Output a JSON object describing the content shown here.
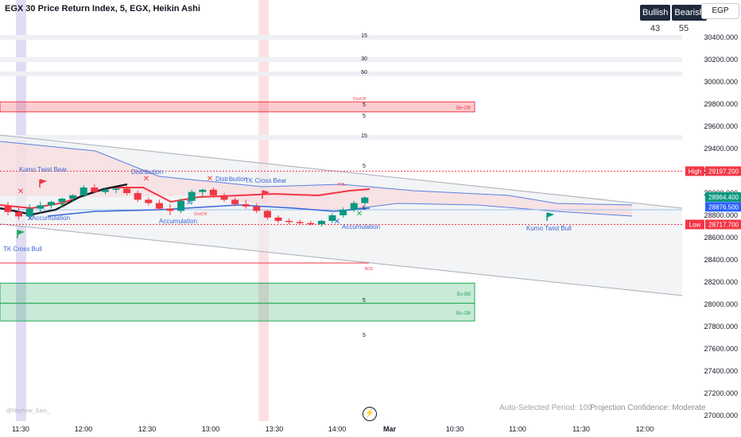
{
  "header": {
    "title": "EGX 30 Price Return Index, 5, EGX, Heikin Ashi",
    "currency": "EGP"
  },
  "sentiment": {
    "bullish_label": "Bullish",
    "bearish_label": "Bearish",
    "bullish_count": "43",
    "bearish_count": "55"
  },
  "footer": {
    "period": "Auto-Selected Period: 100",
    "confidence": "Projection Confidence: Moderate",
    "author": "@Nephew_Sam_"
  },
  "chart_data": {
    "type": "candlestick",
    "ylim": [
      27000,
      30500
    ],
    "y_ticks": [
      30400,
      30200,
      30000,
      29800,
      29600,
      29400,
      29200,
      29000,
      28800,
      28600,
      28400,
      28200,
      28000,
      27800,
      27600,
      27400,
      27200,
      27000
    ],
    "x_ticks": [
      "11:30",
      "12:00",
      "12:30",
      "13:00",
      "13:30",
      "14:00",
      "Mar",
      "10:30",
      "11:00",
      "11:30",
      "12:00"
    ],
    "price_tags": [
      {
        "label": "High",
        "value": 29197.2,
        "text": "29197.200",
        "color": "#f23645"
      },
      {
        "value": 28964.4,
        "text": "28964.400",
        "color": "#089981"
      },
      {
        "value": 28876.5,
        "text": "28876.500",
        "color": "#2962ff"
      },
      {
        "label": "Low",
        "value": 28717.7,
        "text": "28717.700",
        "color": "#f23645"
      }
    ],
    "candles": [
      {
        "o": 28880,
        "h": 28920,
        "l": 28800,
        "c": 28830
      },
      {
        "o": 28830,
        "h": 28880,
        "l": 28760,
        "c": 28790
      },
      {
        "o": 28790,
        "h": 28900,
        "l": 28760,
        "c": 28860
      },
      {
        "o": 28860,
        "h": 28920,
        "l": 28820,
        "c": 28890
      },
      {
        "o": 28890,
        "h": 28930,
        "l": 28860,
        "c": 28920
      },
      {
        "o": 28920,
        "h": 28960,
        "l": 28890,
        "c": 28950
      },
      {
        "o": 28950,
        "h": 28990,
        "l": 28920,
        "c": 28980
      },
      {
        "o": 28980,
        "h": 29070,
        "l": 28960,
        "c": 29050
      },
      {
        "o": 29050,
        "h": 29080,
        "l": 29000,
        "c": 29010
      },
      {
        "o": 29010,
        "h": 29050,
        "l": 28990,
        "c": 29030
      },
      {
        "o": 29030,
        "h": 29050,
        "l": 29000,
        "c": 29040
      },
      {
        "o": 29040,
        "h": 29060,
        "l": 28980,
        "c": 29000
      },
      {
        "o": 29000,
        "h": 29020,
        "l": 28920,
        "c": 28940
      },
      {
        "o": 28940,
        "h": 28960,
        "l": 28890,
        "c": 28910
      },
      {
        "o": 28910,
        "h": 28940,
        "l": 28850,
        "c": 28860
      },
      {
        "o": 28860,
        "h": 28900,
        "l": 28800,
        "c": 28840
      },
      {
        "o": 28840,
        "h": 28950,
        "l": 28820,
        "c": 28930
      },
      {
        "o": 28930,
        "h": 29030,
        "l": 28900,
        "c": 29010
      },
      {
        "o": 29010,
        "h": 29040,
        "l": 28970,
        "c": 29030
      },
      {
        "o": 29030,
        "h": 29050,
        "l": 28960,
        "c": 28980
      },
      {
        "o": 28980,
        "h": 29000,
        "l": 28920,
        "c": 28940
      },
      {
        "o": 28940,
        "h": 28960,
        "l": 28880,
        "c": 28900
      },
      {
        "o": 28900,
        "h": 28940,
        "l": 28860,
        "c": 28880
      },
      {
        "o": 28880,
        "h": 28910,
        "l": 28820,
        "c": 28840
      },
      {
        "o": 28840,
        "h": 28850,
        "l": 28760,
        "c": 28780
      },
      {
        "o": 28780,
        "h": 28800,
        "l": 28730,
        "c": 28750
      },
      {
        "o": 28750,
        "h": 28770,
        "l": 28720,
        "c": 28740
      },
      {
        "o": 28740,
        "h": 28760,
        "l": 28720,
        "c": 28730
      },
      {
        "o": 28730,
        "h": 28750,
        "l": 28710,
        "c": 28720
      },
      {
        "o": 28720,
        "h": 28760,
        "l": 28700,
        "c": 28750
      },
      {
        "o": 28750,
        "h": 28820,
        "l": 28730,
        "c": 28800
      },
      {
        "o": 28800,
        "h": 28870,
        "l": 28780,
        "c": 28850
      },
      {
        "o": 28850,
        "h": 28930,
        "l": 28830,
        "c": 28910
      },
      {
        "o": 28910,
        "h": 28970,
        "l": 28890,
        "c": 28960
      }
    ],
    "zones": [
      {
        "label": "Be-OB",
        "from": 29820,
        "to": 29730,
        "color": "#f23645"
      },
      {
        "label": "Bu-BB",
        "from": 28190,
        "to": 28010,
        "color": "#22ab5a"
      },
      {
        "label": "Bu-OB",
        "from": 28010,
        "to": 27850,
        "color": "#22ab5a"
      }
    ],
    "annotations": [
      "Kumo Twist Bear",
      "TK Cross Bull",
      "Distribution",
      "Distribution",
      "TK Cross Bear",
      "Accumulation",
      "Accumulation",
      "Accumulation",
      "Kumo Twist Bull"
    ],
    "level_labels": [
      "15",
      "30",
      "60",
      "5",
      "5",
      "15",
      "5",
      "5",
      "5",
      "5"
    ],
    "tiny_labels": [
      "ChoCH",
      "PHL",
      "BOS",
      "ChoCH"
    ]
  }
}
